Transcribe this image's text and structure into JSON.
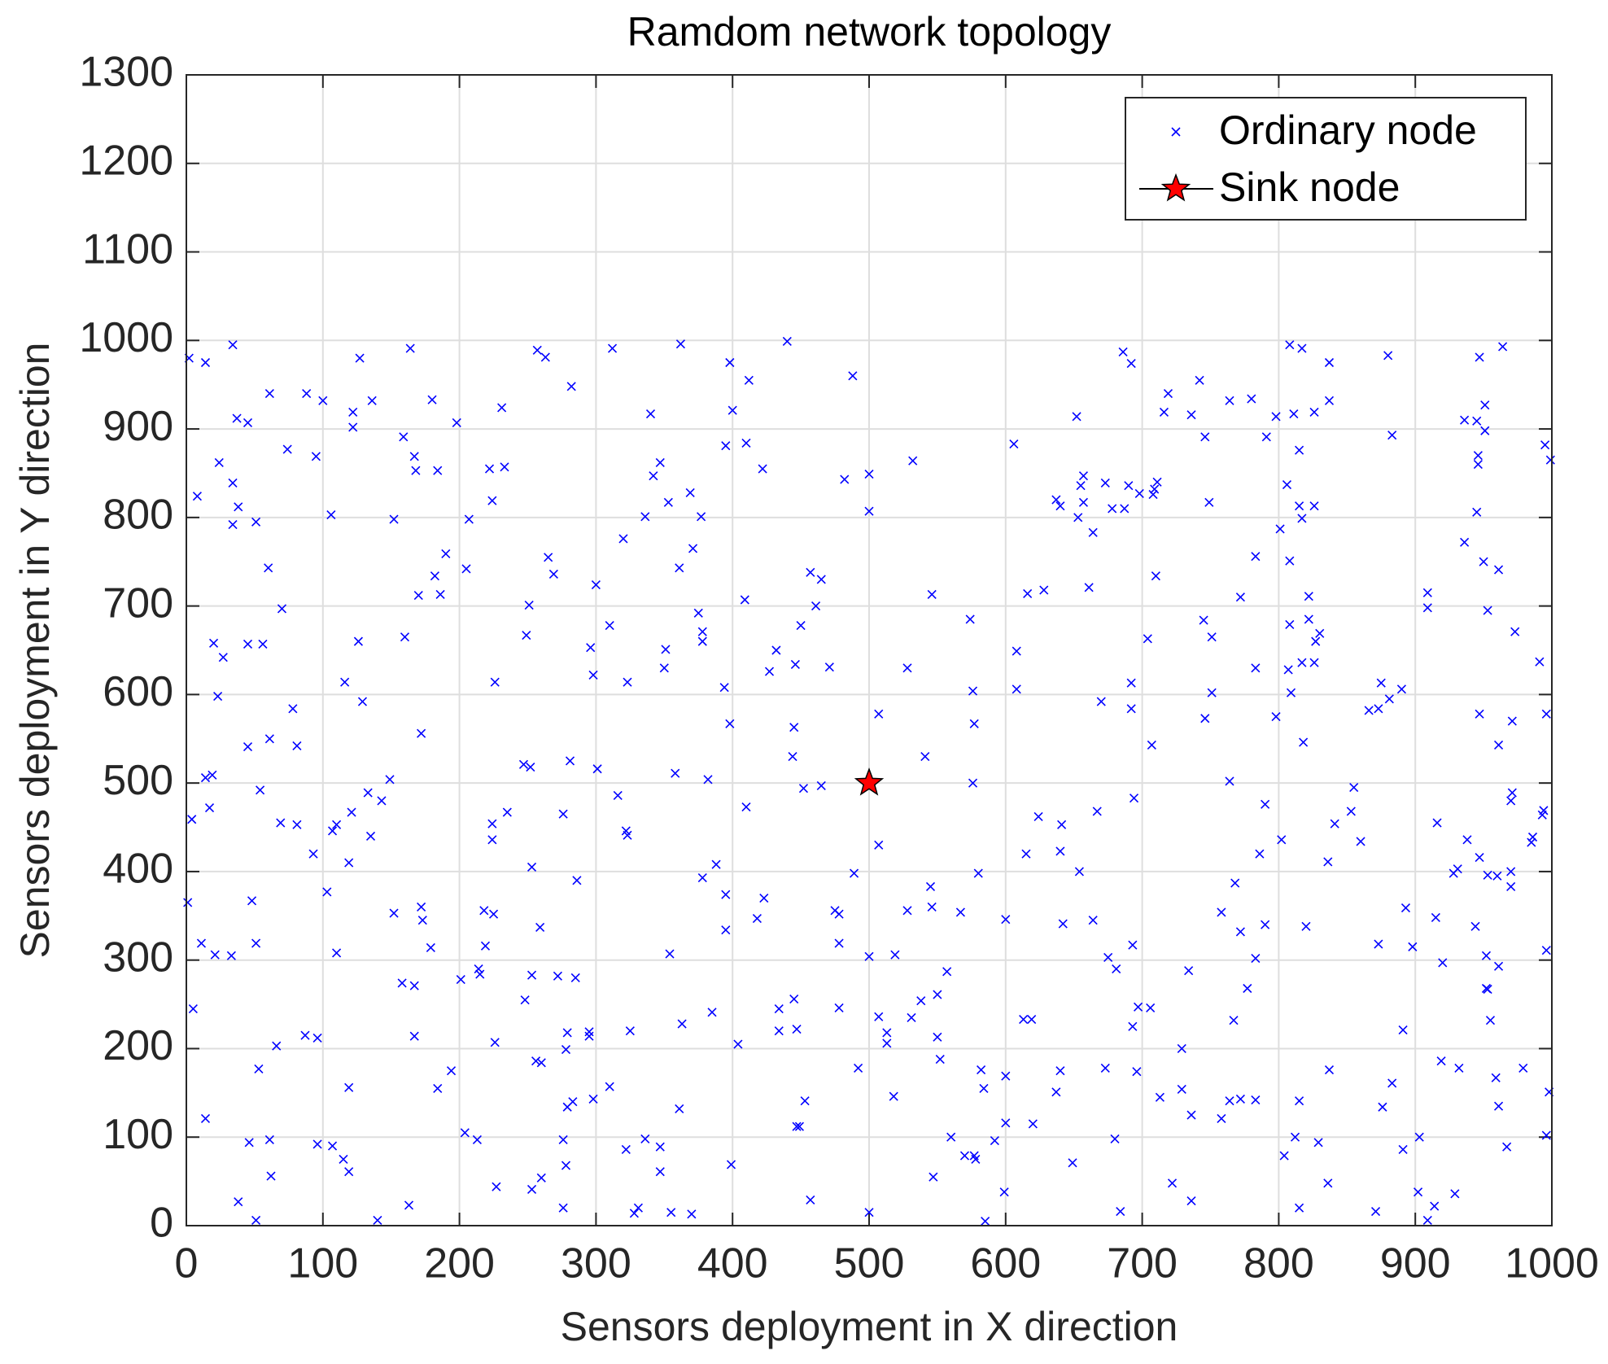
{
  "chart_data": {
    "type": "scatter",
    "title": "Ramdom network topology",
    "x_label": "Sensors deployment in X direction",
    "y_label": "Sensors deployment in Y direction",
    "xlim": [
      0,
      1000
    ],
    "ylim": [
      0,
      1300
    ],
    "xticks": [
      0,
      100,
      200,
      300,
      400,
      500,
      600,
      700,
      800,
      900,
      1000
    ],
    "yticks": [
      0,
      100,
      200,
      300,
      400,
      500,
      600,
      700,
      800,
      900,
      1000,
      1100,
      1200,
      1300
    ],
    "grid": true,
    "legend": "northeast",
    "series": [
      {
        "name": "Ordinary node",
        "color": "#0000ff",
        "marker": "x",
        "x": [
          2,
          8,
          14,
          34,
          20,
          24,
          37,
          45,
          34,
          38,
          34,
          51,
          61,
          74,
          88,
          100,
          95,
          122,
          122,
          127,
          106,
          136,
          164,
          159,
          167,
          168,
          184,
          180,
          198,
          152,
          190,
          170,
          186,
          182,
          160,
          126,
          116,
          129,
          60,
          70,
          45,
          56,
          23,
          27,
          78,
          61,
          81,
          45,
          54,
          14,
          19,
          4,
          17,
          69,
          81,
          48,
          1,
          11,
          21,
          33,
          51,
          5,
          14,
          53,
          46,
          61,
          62,
          38,
          51,
          66,
          87,
          96,
          96,
          107,
          115,
          119,
          119,
          140,
          163,
          167,
          158,
          167,
          152,
          172,
          173,
          179,
          201,
          184,
          194,
          204,
          213,
          214,
          215,
          218,
          225,
          219,
          226,
          227,
          103,
          110,
          93,
          110,
          107,
          121,
          133,
          135,
          119,
          143,
          149,
          172,
          207,
          205,
          222,
          224,
          233,
          231,
          226,
          224,
          224,
          235,
          248,
          253,
          253,
          251,
          249,
          247,
          252,
          257,
          263,
          282,
          265,
          269,
          281,
          276,
          286,
          259,
          272,
          285,
          279,
          278,
          256,
          260,
          260,
          253,
          276,
          278,
          279,
          283,
          276,
          295,
          295,
          298,
          310,
          300,
          296,
          298,
          301,
          312,
          310,
          316,
          320,
          323,
          322,
          323,
          325,
          322,
          336,
          328,
          331,
          347,
          347,
          355,
          370,
          361,
          363,
          354,
          336,
          340,
          342,
          347,
          353,
          361,
          351,
          350,
          358,
          362,
          369,
          371,
          377,
          378,
          378,
          375,
          378,
          382,
          385,
          388,
          398,
          400,
          395,
          412,
          410,
          409,
          394,
          398,
          410,
          395,
          395,
          404,
          399,
          422,
          432,
          427,
          423,
          418,
          440,
          445,
          444,
          446,
          450,
          452,
          457,
          465,
          461,
          471,
          465,
          434,
          434,
          445,
          447,
          447,
          449,
          453,
          457,
          475,
          478,
          478,
          478,
          488,
          482,
          500,
          500,
          507,
          507,
          500,
          507,
          513,
          513,
          518,
          500,
          489,
          492,
          519,
          528,
          528,
          532,
          541,
          545,
          546,
          546,
          538,
          531,
          550,
          552,
          550,
          557,
          560,
          547,
          570,
          577,
          578,
          567,
          574,
          576,
          577,
          576,
          580,
          582,
          584,
          585,
          592,
          600,
          600,
          599,
          600,
          606,
          608,
          608,
          615,
          616,
          628,
          624,
          613,
          619,
          620,
          637,
          640,
          637,
          640,
          641,
          640,
          642,
          649,
          652,
          653,
          655,
          657,
          657,
          654,
          661,
          664,
          664,
          667,
          670,
          673,
          678,
          673,
          675,
          681,
          680,
          686,
          692,
          687,
          690,
          692,
          692,
          694,
          693,
          693,
          697,
          696,
          684,
          698,
          709,
          711,
          708,
          704,
          707,
          706,
          710,
          713,
          716,
          719,
          722,
          729,
          729,
          734,
          736,
          736,
          736,
          742,
          746,
          749,
          745,
          751,
          746,
          751,
          764,
          764,
          758,
          768,
          767,
          772,
          772,
          758,
          764,
          772,
          780,
          783,
          783,
          786,
          783,
          777,
          783,
          790,
          791,
          790,
          798,
          801,
          798,
          802,
          804,
          808,
          806,
          808,
          808,
          807,
          809,
          811,
          812,
          817,
          815,
          815,
          817,
          817,
          818,
          820,
          815,
          815,
          822,
          822,
          826,
          826,
          826,
          830,
          827,
          836,
          829,
          836,
          837,
          837,
          837,
          841,
          853,
          855,
          860,
          866,
          873,
          875,
          880,
          883,
          881,
          890,
          873,
          876,
          871,
          883,
          891,
          891,
          893,
          898,
          903,
          902,
          909,
          909,
          909,
          914,
          915,
          916,
          919,
          920,
          928,
          931,
          932,
          929,
          936,
          936,
          938,
          944,
          945,
          945,
          946,
          946,
          947,
          947,
          947,
          950,
          951,
          951,
          953,
          952,
          952,
          953,
          955,
          953,
          960,
          959,
          961,
          961,
          961,
          961,
          964,
          970,
          971,
          970,
          970,
          971,
          967,
          973,
          979,
          985,
          986,
          991,
          994,
          993,
          995,
          996,
          996,
          996,
          998,
          999
        ],
        "y": [
          980,
          824,
          975,
          995,
          658,
          862,
          912,
          907,
          839,
          812,
          792,
          795,
          940,
          877,
          940,
          932,
          869,
          919,
          902,
          980,
          803,
          932,
          991,
          891,
          869,
          853,
          853,
          933,
          907,
          798,
          759,
          712,
          713,
          734,
          665,
          660,
          614,
          592,
          743,
          697,
          657,
          657,
          598,
          642,
          584,
          550,
          542,
          541,
          492,
          506,
          509,
          459,
          472,
          455,
          453,
          367,
          365,
          319,
          306,
          305,
          319,
          245,
          121,
          177,
          94,
          97,
          56,
          27,
          6,
          203,
          215,
          212,
          92,
          90,
          75,
          61,
          156,
          6,
          23,
          214,
          274,
          271,
          353,
          360,
          345,
          314,
          278,
          155,
          175,
          105,
          97,
          290,
          284,
          356,
          352,
          316,
          207,
          44,
          377,
          308,
          420,
          453,
          446,
          467,
          489,
          440,
          410,
          480,
          504,
          556,
          798,
          742,
          855,
          819,
          857,
          924,
          614,
          454,
          436,
          467,
          255,
          283,
          405,
          701,
          667,
          521,
          518,
          989,
          981,
          948,
          755,
          736,
          525,
          465,
          390,
          337,
          282,
          280,
          218,
          199,
          186,
          184,
          54,
          41,
          97,
          68,
          134,
          140,
          20,
          219,
          214,
          143,
          157,
          724,
          653,
          622,
          516,
          991,
          678,
          486,
          776,
          614,
          446,
          441,
          220,
          86,
          98,
          14,
          20,
          89,
          61,
          15,
          13,
          132,
          228,
          307,
          801,
          917,
          847,
          862,
          817,
          743,
          651,
          630,
          511,
          996,
          828,
          765,
          801,
          671,
          660,
          692,
          393,
          504,
          241,
          408,
          975,
          921,
          881,
          955,
          884,
          707,
          608,
          567,
          473,
          374,
          334,
          205,
          69,
          855,
          650,
          626,
          370,
          347,
          999,
          563,
          530,
          634,
          678,
          494,
          738,
          730,
          700,
          631,
          497,
          245,
          220,
          256,
          222,
          112,
          112,
          141,
          29,
          356,
          352,
          319,
          246,
          960,
          843,
          849,
          807,
          578,
          430,
          304,
          236,
          218,
          206,
          146,
          15,
          398,
          178,
          306,
          356,
          630,
          864,
          530,
          383,
          713,
          360,
          254,
          235,
          213,
          188,
          261,
          287,
          100,
          55,
          79,
          79,
          75,
          354,
          685,
          604,
          567,
          500,
          398,
          176,
          155,
          5,
          96,
          169,
          116,
          38,
          346,
          883,
          649,
          606,
          420,
          714,
          718,
          462,
          233,
          233,
          115,
          820,
          813,
          151,
          175,
          453,
          423,
          341,
          71,
          914,
          800,
          836,
          847,
          817,
          400,
          721,
          783,
          345,
          468,
          592,
          839,
          810,
          178,
          303,
          290,
          98,
          987,
          974,
          810,
          836,
          613,
          584,
          483,
          317,
          225,
          247,
          174,
          16,
          827,
          832,
          840,
          826,
          663,
          543,
          246,
          734,
          145,
          919,
          940,
          48,
          200,
          154,
          288,
          28,
          125,
          916,
          955,
          891,
          817,
          684,
          665,
          573,
          602,
          932,
          502,
          354,
          387,
          232,
          332,
          710,
          121,
          141,
          143,
          934,
          756,
          630,
          420,
          302,
          268,
          142,
          476,
          891,
          340,
          914,
          787,
          575,
          436,
          79,
          995,
          837,
          751,
          679,
          628,
          602,
          917,
          100,
          991,
          876,
          813,
          799,
          636,
          546,
          338,
          141,
          20,
          711,
          685,
          813,
          636,
          919,
          669,
          660,
          411,
          94,
          48,
          176,
          975,
          932,
          454,
          468,
          495,
          434,
          582,
          584,
          613,
          983,
          893,
          595,
          606,
          318,
          134,
          16,
          161,
          86,
          221,
          359,
          315,
          100,
          38,
          715,
          698,
          6,
          22,
          348,
          455,
          186,
          297,
          398,
          403,
          178,
          36,
          910,
          772,
          436,
          338,
          909,
          806,
          870,
          860,
          981,
          578,
          416,
          750,
          927,
          898,
          695,
          305,
          268,
          267,
          232,
          396,
          395,
          167,
          135,
          741,
          543,
          293,
          993,
          480,
          489,
          400,
          383,
          570,
          89,
          671,
          178,
          433,
          439,
          637,
          469,
          464,
          882,
          578,
          311,
          102,
          151,
          865
        ]
      },
      {
        "name": "Sink node",
        "color": "#ff0000",
        "marker": "star",
        "x": [
          500
        ],
        "y": [
          500
        ]
      }
    ]
  }
}
